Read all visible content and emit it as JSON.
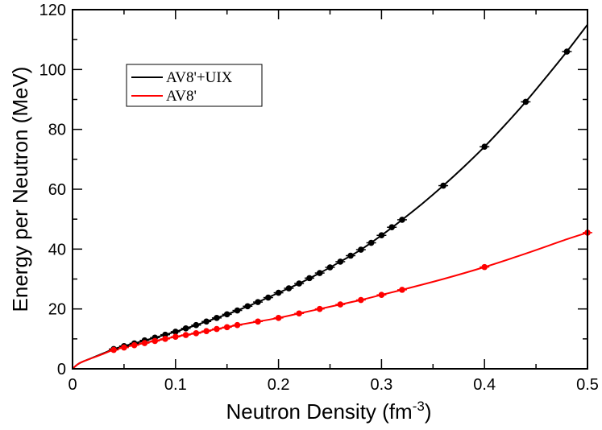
{
  "chart_data": {
    "type": "line",
    "xlabel": "Neutron Density (fm",
    "xlabel_exponent": "-3",
    "xlabel_suffix": ")",
    "ylabel": "Energy per Neutron (MeV)",
    "xlim": [
      0,
      0.5
    ],
    "ylim": [
      0,
      120
    ],
    "xticks": [
      0,
      0.1,
      0.2,
      0.3,
      0.4,
      0.5
    ],
    "xtick_labels": [
      "0",
      "0.1",
      "0.2",
      "0.3",
      "0.4",
      "0.5"
    ],
    "yticks": [
      0,
      20,
      40,
      60,
      80,
      100,
      120
    ],
    "ytick_labels": [
      "0",
      "20",
      "40",
      "60",
      "80",
      "100",
      "120"
    ],
    "legend_position": "top-left",
    "series": [
      {
        "name": "AV8'+UIX",
        "color": "#000000",
        "points_x": [
          0.04,
          0.05,
          0.06,
          0.07,
          0.08,
          0.09,
          0.1,
          0.11,
          0.12,
          0.13,
          0.14,
          0.15,
          0.16,
          0.17,
          0.18,
          0.19,
          0.2,
          0.21,
          0.22,
          0.23,
          0.24,
          0.25,
          0.26,
          0.27,
          0.28,
          0.29,
          0.3,
          0.31,
          0.32,
          0.36,
          0.4,
          0.44,
          0.48
        ],
        "points_y": [
          6.6,
          7.6,
          8.5,
          9.5,
          10.4,
          11.4,
          12.4,
          13.5,
          14.6,
          15.8,
          17.0,
          18.2,
          19.5,
          20.9,
          22.3,
          23.8,
          25.4,
          26.9,
          28.5,
          30.3,
          32.0,
          33.9,
          35.8,
          37.8,
          39.8,
          42.1,
          44.6,
          47.3,
          49.8,
          61.2,
          74.2,
          89.2,
          106.0
        ],
        "curve_x": [
          0,
          0.005,
          0.01,
          0.02,
          0.03,
          0.04,
          0.05,
          0.06,
          0.08,
          0.1,
          0.12,
          0.14,
          0.16,
          0.18,
          0.2,
          0.22,
          0.24,
          0.26,
          0.28,
          0.3,
          0.32,
          0.34,
          0.36,
          0.38,
          0.4,
          0.42,
          0.44,
          0.46,
          0.48,
          0.5
        ],
        "curve_y": [
          0,
          1.5,
          2.4,
          3.8,
          5.2,
          6.6,
          7.6,
          8.5,
          10.4,
          12.4,
          14.6,
          17.0,
          19.5,
          22.3,
          25.4,
          28.5,
          32.0,
          35.8,
          39.8,
          44.6,
          49.8,
          55.3,
          61.2,
          67.5,
          74.2,
          81.5,
          89.2,
          97.5,
          106.0,
          115.0
        ]
      },
      {
        "name": "AV8'",
        "color": "#ff0000",
        "points_x": [
          0.04,
          0.05,
          0.06,
          0.07,
          0.08,
          0.09,
          0.1,
          0.11,
          0.12,
          0.13,
          0.14,
          0.15,
          0.16,
          0.18,
          0.2,
          0.22,
          0.24,
          0.26,
          0.28,
          0.3,
          0.32,
          0.4,
          0.5
        ],
        "points_y": [
          6.3,
          7.1,
          7.9,
          8.6,
          9.3,
          10.0,
          10.7,
          11.3,
          11.9,
          12.6,
          13.3,
          13.9,
          14.6,
          15.8,
          17.0,
          18.5,
          20.0,
          21.5,
          23.0,
          24.7,
          26.4,
          34.0,
          45.5
        ],
        "curve_x": [
          0,
          0.005,
          0.01,
          0.02,
          0.03,
          0.04,
          0.06,
          0.08,
          0.1,
          0.12,
          0.14,
          0.16,
          0.18,
          0.2,
          0.22,
          0.24,
          0.26,
          0.28,
          0.3,
          0.32,
          0.36,
          0.4,
          0.44,
          0.48,
          0.5
        ],
        "curve_y": [
          0,
          1.5,
          2.4,
          3.7,
          5.0,
          6.3,
          7.9,
          9.3,
          10.7,
          11.9,
          13.3,
          14.6,
          15.8,
          17.0,
          18.5,
          20.0,
          21.5,
          23.0,
          24.7,
          26.4,
          30.0,
          34.0,
          38.5,
          43.3,
          45.5
        ]
      }
    ]
  }
}
